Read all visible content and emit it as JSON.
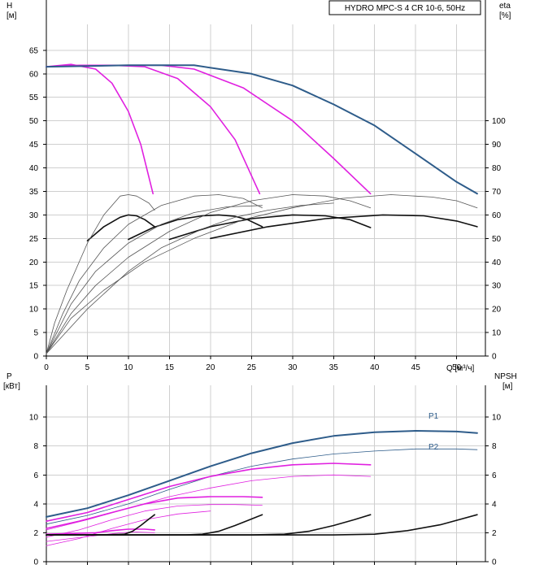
{
  "chart_data": [
    {
      "type": "line",
      "title": "HYDRO MPC-S 4 CR 10-6, 50Hz",
      "ylabel": [
        "H",
        "[м]"
      ],
      "y2label": [
        "eta",
        "[%]"
      ],
      "xlabel": "Q [м³/ч]",
      "xlim": [
        0,
        53.5
      ],
      "ylim": [
        0,
        70.5
      ],
      "y2lim": [
        0,
        141
      ],
      "xticks": [
        0,
        5,
        10,
        15,
        20,
        25,
        30,
        35,
        40,
        45,
        50
      ],
      "yticks": [
        0,
        5,
        10,
        15,
        20,
        25,
        30,
        35,
        40,
        45,
        50,
        55,
        60,
        65
      ],
      "y2ticks": [
        0,
        10,
        20,
        30,
        40,
        50,
        60,
        70,
        80,
        90,
        100
      ],
      "grid": true,
      "colors": {
        "blue": "#2e5c8a",
        "magenta": "#e020e0",
        "black": "#111111",
        "gray": "#555555"
      },
      "series": [
        {
          "color": "magenta",
          "width": 1.6,
          "points": [
            [
              0,
              61.5
            ],
            [
              3,
              62
            ],
            [
              6,
              61
            ],
            [
              8,
              58
            ],
            [
              10,
              52
            ],
            [
              11.5,
              45
            ],
            [
              13,
              34.5
            ]
          ]
        },
        {
          "color": "magenta",
          "width": 1.6,
          "points": [
            [
              0,
              61.5
            ],
            [
              4,
              61.8
            ],
            [
              8,
              61.8
            ],
            [
              12,
              61.5
            ],
            [
              16,
              59
            ],
            [
              20,
              53
            ],
            [
              23,
              46
            ],
            [
              26,
              34.5
            ]
          ]
        },
        {
          "color": "magenta",
          "width": 1.6,
          "points": [
            [
              0,
              61.5
            ],
            [
              8,
              61.8
            ],
            [
              14,
              61.8
            ],
            [
              18,
              61
            ],
            [
              24,
              57
            ],
            [
              30,
              50
            ],
            [
              35,
              42
            ],
            [
              39.5,
              34.5
            ]
          ]
        },
        {
          "color": "blue",
          "width": 2,
          "points": [
            [
              0,
              61.5
            ],
            [
              10,
              61.8
            ],
            [
              18,
              61.8
            ],
            [
              25,
              60
            ],
            [
              30,
              57.5
            ],
            [
              35,
              53.5
            ],
            [
              40,
              49
            ],
            [
              45,
              43
            ],
            [
              50,
              37
            ],
            [
              52.5,
              34.5
            ]
          ]
        },
        {
          "color": "black",
          "width": 1.6,
          "points": [
            [
              5,
              24.5
            ],
            [
              7,
              27.5
            ],
            [
              9,
              29.5
            ],
            [
              10,
              30
            ],
            [
              11,
              29.8
            ],
            [
              12,
              29
            ],
            [
              13.2,
              27.5
            ]
          ]
        },
        {
          "color": "black",
          "width": 1.6,
          "points": [
            [
              10,
              24.8
            ],
            [
              13,
              27.3
            ],
            [
              16,
              29
            ],
            [
              19,
              29.8
            ],
            [
              21,
              30
            ],
            [
              23,
              29.7
            ],
            [
              24.5,
              29
            ],
            [
              26.3,
              27.5
            ]
          ]
        },
        {
          "color": "black",
          "width": 1.6,
          "points": [
            [
              15,
              24.8
            ],
            [
              20,
              27.5
            ],
            [
              25,
              29.2
            ],
            [
              30,
              30
            ],
            [
              34,
              29.8
            ],
            [
              37,
              29
            ],
            [
              39.5,
              27.3
            ]
          ]
        },
        {
          "color": "black",
          "width": 1.6,
          "points": [
            [
              20,
              25
            ],
            [
              27,
              27.5
            ],
            [
              34,
              29.2
            ],
            [
              41,
              30
            ],
            [
              46,
              29.8
            ],
            [
              50,
              28.7
            ],
            [
              52.5,
              27.5
            ]
          ]
        },
        {
          "color": "gray",
          "width": 0.8,
          "points": [
            [
              0,
              0.5
            ],
            [
              1,
              7
            ],
            [
              2.5,
              14
            ],
            [
              5,
              24
            ],
            [
              7,
              30
            ],
            [
              9,
              34
            ],
            [
              10,
              34.3
            ],
            [
              11,
              34
            ],
            [
              12.5,
              32.5
            ],
            [
              13.2,
              31
            ]
          ]
        },
        {
          "color": "gray",
          "width": 0.8,
          "points": [
            [
              0,
              0.5
            ],
            [
              2,
              9
            ],
            [
              4,
              16
            ],
            [
              7,
              23
            ],
            [
              10,
              28
            ],
            [
              14,
              32
            ],
            [
              18,
              34
            ],
            [
              21,
              34.3
            ],
            [
              24,
              33.5
            ],
            [
              26.3,
              31.5
            ]
          ]
        },
        {
          "color": "gray",
          "width": 0.8,
          "points": [
            [
              0,
              0.5
            ],
            [
              3,
              9
            ],
            [
              6,
              15
            ],
            [
              10,
              21
            ],
            [
              15,
              26.5
            ],
            [
              20,
              30.5
            ],
            [
              25,
              33
            ],
            [
              30,
              34.3
            ],
            [
              34,
              34
            ],
            [
              37,
              33
            ],
            [
              39.5,
              31.5
            ]
          ]
        },
        {
          "color": "gray",
          "width": 0.8,
          "points": [
            [
              0,
              0.5
            ],
            [
              3,
              8
            ],
            [
              7,
              14
            ],
            [
              12,
              20
            ],
            [
              18,
              25
            ],
            [
              24,
              29
            ],
            [
              30,
              31.5
            ],
            [
              36,
              33.5
            ],
            [
              42,
              34.3
            ],
            [
              47,
              33.8
            ],
            [
              50,
              33
            ],
            [
              52.5,
              31.5
            ]
          ]
        },
        {
          "color": "gray",
          "width": 0.8,
          "points": [
            [
              0,
              0.5
            ],
            [
              5,
              10
            ],
            [
              10,
              18
            ],
            [
              14,
              23
            ],
            [
              19,
              27
            ],
            [
              23,
              29.5
            ],
            [
              27,
              31
            ],
            [
              31,
              32
            ],
            [
              35,
              32.5
            ]
          ]
        },
        {
          "color": "gray",
          "width": 0.8,
          "points": [
            [
              0,
              0.5
            ],
            [
              3,
              11
            ],
            [
              6,
              18
            ],
            [
              10,
              24
            ],
            [
              14,
              28
            ],
            [
              18,
              30.5
            ],
            [
              22,
              31.7
            ],
            [
              26.3,
              32
            ]
          ]
        }
      ]
    },
    {
      "type": "line",
      "ylabel": [
        "P",
        "[кВт]"
      ],
      "y2label": [
        "NPSH",
        "[м]"
      ],
      "xlim": [
        0,
        53.5
      ],
      "ylim": [
        0,
        12.2
      ],
      "y2lim": [
        0,
        12.2
      ],
      "yticks": [
        0,
        2,
        4,
        6,
        8,
        10
      ],
      "y2ticks": [
        0,
        2,
        4,
        6,
        8,
        10
      ],
      "grid": true,
      "series": [
        {
          "name": "P1",
          "color": "blue",
          "width": 2,
          "points": [
            [
              0,
              3.1
            ],
            [
              5,
              3.7
            ],
            [
              10,
              4.6
            ],
            [
              15,
              5.6
            ],
            [
              20,
              6.6
            ],
            [
              25,
              7.5
            ],
            [
              30,
              8.2
            ],
            [
              35,
              8.7
            ],
            [
              40,
              8.95
            ],
            [
              45,
              9.05
            ],
            [
              50,
              9.0
            ],
            [
              52.5,
              8.9
            ]
          ]
        },
        {
          "name": "P2",
          "color": "blue",
          "width": 0.8,
          "points": [
            [
              0,
              2.6
            ],
            [
              5,
              3.2
            ],
            [
              10,
              4.0
            ],
            [
              15,
              5.0
            ],
            [
              20,
              5.9
            ],
            [
              25,
              6.6
            ],
            [
              30,
              7.1
            ],
            [
              35,
              7.45
            ],
            [
              40,
              7.65
            ],
            [
              45,
              7.8
            ],
            [
              50,
              7.8
            ],
            [
              52.5,
              7.75
            ]
          ]
        },
        {
          "color": "magenta",
          "width": 1.6,
          "points": [
            [
              0,
              1.9
            ],
            [
              3,
              1.95
            ],
            [
              6,
              2.0
            ],
            [
              8,
              2.15
            ],
            [
              10,
              2.25
            ],
            [
              12,
              2.25
            ],
            [
              13.2,
              2.2
            ]
          ]
        },
        {
          "color": "magenta",
          "width": 1.6,
          "points": [
            [
              0,
              2.3
            ],
            [
              4,
              2.8
            ],
            [
              8,
              3.4
            ],
            [
              12,
              4.0
            ],
            [
              16,
              4.4
            ],
            [
              20,
              4.5
            ],
            [
              24,
              4.5
            ],
            [
              26.3,
              4.45
            ]
          ]
        },
        {
          "color": "magenta",
          "width": 1.6,
          "points": [
            [
              0,
              2.8
            ],
            [
              5,
              3.4
            ],
            [
              10,
              4.3
            ],
            [
              15,
              5.2
            ],
            [
              20,
              5.9
            ],
            [
              25,
              6.4
            ],
            [
              30,
              6.7
            ],
            [
              35,
              6.8
            ],
            [
              39.5,
              6.7
            ]
          ]
        },
        {
          "color": "magenta",
          "width": 0.8,
          "points": [
            [
              0,
              1.4
            ],
            [
              3,
              1.6
            ],
            [
              6,
              1.8
            ],
            [
              9,
              2.0
            ],
            [
              11,
              2.05
            ],
            [
              13.2,
              2.0
            ]
          ]
        },
        {
          "color": "magenta",
          "width": 0.8,
          "points": [
            [
              0,
              1.7
            ],
            [
              4,
              2.2
            ],
            [
              8,
              2.9
            ],
            [
              12,
              3.5
            ],
            [
              16,
              3.85
            ],
            [
              20,
              3.95
            ],
            [
              23,
              3.95
            ],
            [
              26.3,
              3.9
            ]
          ]
        },
        {
          "color": "magenta",
          "width": 0.8,
          "points": [
            [
              0,
              2.2
            ],
            [
              5,
              2.9
            ],
            [
              10,
              3.7
            ],
            [
              15,
              4.5
            ],
            [
              20,
              5.1
            ],
            [
              25,
              5.6
            ],
            [
              30,
              5.9
            ],
            [
              35,
              6.0
            ],
            [
              39.5,
              5.9
            ]
          ]
        },
        {
          "color": "magenta",
          "width": 0.8,
          "points": [
            [
              0,
              1.1
            ],
            [
              4,
              1.6
            ],
            [
              8,
              2.3
            ],
            [
              12,
              2.9
            ],
            [
              16,
              3.3
            ],
            [
              20,
              3.5
            ]
          ]
        },
        {
          "color": "black",
          "width": 1.6,
          "points": [
            [
              0,
              1.85
            ],
            [
              4,
              1.85
            ],
            [
              8,
              1.87
            ],
            [
              9.5,
              1.9
            ],
            [
              10.5,
              2.1
            ],
            [
              11.5,
              2.5
            ],
            [
              12.5,
              2.95
            ],
            [
              13.2,
              3.25
            ]
          ]
        },
        {
          "color": "black",
          "width": 1.6,
          "points": [
            [
              0,
              1.85
            ],
            [
              10,
              1.85
            ],
            [
              17,
              1.85
            ],
            [
              19,
              1.9
            ],
            [
              21,
              2.1
            ],
            [
              23,
              2.5
            ],
            [
              25,
              2.95
            ],
            [
              26.3,
              3.25
            ]
          ]
        },
        {
          "color": "black",
          "width": 1.6,
          "points": [
            [
              0,
              1.85
            ],
            [
              15,
              1.85
            ],
            [
              25,
              1.85
            ],
            [
              29,
              1.9
            ],
            [
              32,
              2.1
            ],
            [
              35,
              2.5
            ],
            [
              37.5,
              2.9
            ],
            [
              39.5,
              3.25
            ]
          ]
        },
        {
          "color": "black",
          "width": 1.6,
          "points": [
            [
              0,
              1.85
            ],
            [
              20,
              1.85
            ],
            [
              35,
              1.85
            ],
            [
              40,
              1.9
            ],
            [
              44,
              2.15
            ],
            [
              48,
              2.55
            ],
            [
              52.5,
              3.25
            ]
          ]
        }
      ]
    }
  ]
}
